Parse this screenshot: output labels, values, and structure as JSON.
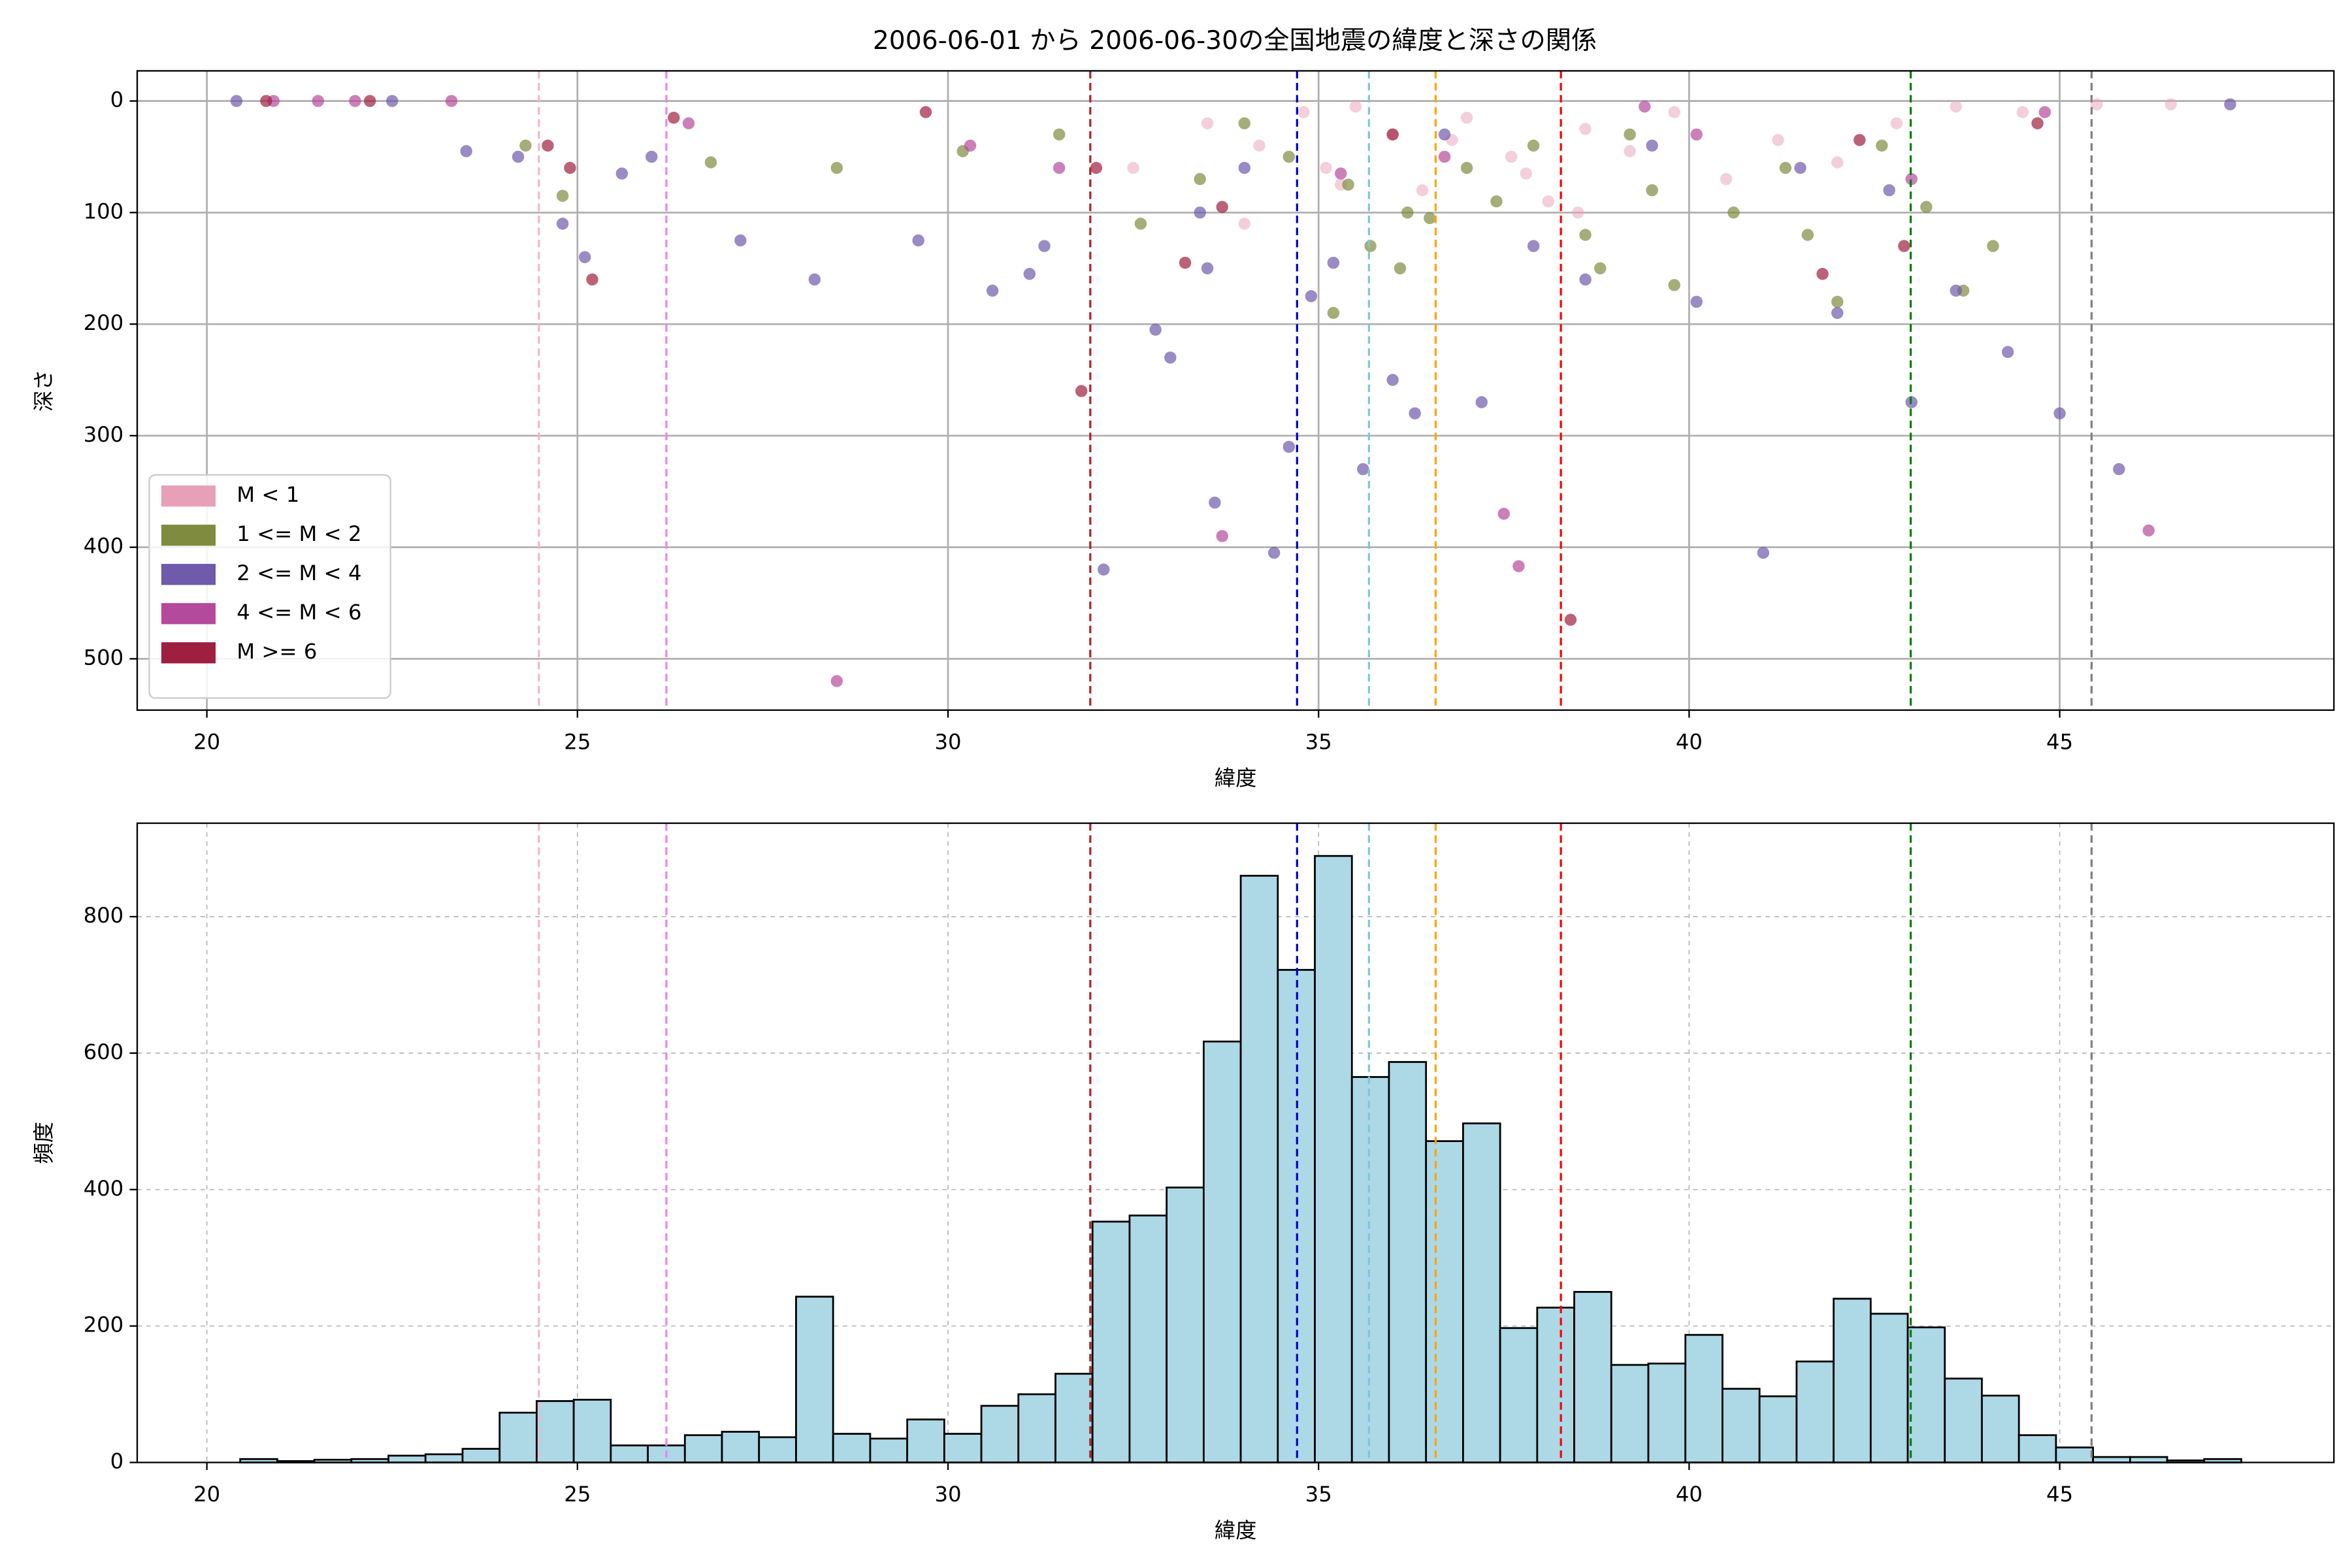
{
  "chart_data": [
    {
      "type": "scatter",
      "title": "2006-06-01 から 2006-06-30の全国地震の緯度と深さの関係",
      "x_label": "緯度",
      "y_label": "深さ",
      "xlim": [
        19.06,
        48.7
      ],
      "ylim": [
        546,
        -27
      ],
      "xticks": [
        20,
        25,
        30,
        35,
        40,
        45
      ],
      "yticks": [
        0,
        100,
        200,
        300,
        400,
        500
      ],
      "grid": "solid",
      "legend": "lower left",
      "vlines": [
        {
          "x": 24.48,
          "color": "#f4b6c9"
        },
        {
          "x": 26.2,
          "color": "#ee82ee"
        },
        {
          "x": 31.92,
          "color": "#b22222"
        },
        {
          "x": 34.71,
          "color": "#0000cd"
        },
        {
          "x": 35.68,
          "color": "#7ec8d8"
        },
        {
          "x": 36.58,
          "color": "#ffa500"
        },
        {
          "x": 38.27,
          "color": "#ff0000"
        },
        {
          "x": 42.99,
          "color": "#008000"
        },
        {
          "x": 45.43,
          "color": "#808080"
        }
      ],
      "series": [
        {
          "name": "M < 1",
          "color": "#e8a0b8",
          "x": [
            33.5,
            34.2,
            34.8,
            35.1,
            35.5,
            36.0,
            36.4,
            37.0,
            37.6,
            38.1,
            38.6,
            39.2,
            39.8,
            40.5,
            41.2,
            42.0,
            42.8,
            43.6,
            44.5,
            45.5,
            46.5,
            34.0,
            35.3,
            36.8,
            38.5,
            37.8,
            32.5
          ],
          "values": [
            20,
            40,
            10,
            60,
            5,
            30,
            80,
            15,
            50,
            90,
            25,
            45,
            10,
            70,
            35,
            55,
            20,
            5,
            10,
            3,
            3,
            110,
            75,
            35,
            100,
            65,
            60
          ]
        },
        {
          "name": "1 <= M < 2",
          "color": "#7f8c3f",
          "x": [
            24.3,
            24.8,
            26.8,
            28.5,
            30.2,
            31.5,
            32.6,
            33.4,
            34.0,
            34.6,
            35.2,
            35.7,
            36.1,
            36.5,
            37.0,
            37.4,
            37.9,
            38.6,
            39.2,
            39.8,
            40.6,
            41.3,
            42.0,
            42.6,
            43.2,
            43.7,
            44.1,
            35.4,
            36.2,
            38.8,
            39.5,
            41.6
          ],
          "values": [
            40,
            85,
            55,
            60,
            45,
            30,
            110,
            70,
            20,
            50,
            190,
            130,
            150,
            105,
            60,
            90,
            40,
            120,
            30,
            165,
            100,
            60,
            180,
            40,
            95,
            170,
            130,
            75,
            100,
            150,
            80,
            120
          ]
        },
        {
          "name": "2 <= M < 4",
          "color": "#6f5aab",
          "x": [
            20.4,
            22.5,
            23.5,
            24.2,
            24.8,
            25.1,
            25.6,
            26.0,
            27.2,
            28.2,
            29.6,
            30.6,
            31.1,
            31.3,
            32.8,
            33.0,
            33.4,
            33.6,
            34.0,
            34.4,
            34.6,
            34.9,
            35.2,
            35.6,
            36.0,
            36.3,
            36.7,
            37.2,
            37.9,
            38.6,
            39.5,
            40.1,
            41.0,
            41.5,
            42.0,
            42.7,
            43.0,
            43.6,
            44.3,
            45.0,
            45.8,
            47.3,
            33.5,
            32.1
          ],
          "values": [
            0,
            0,
            45,
            50,
            110,
            140,
            65,
            50,
            125,
            160,
            125,
            170,
            155,
            130,
            205,
            230,
            100,
            360,
            60,
            405,
            310,
            175,
            145,
            330,
            250,
            280,
            30,
            270,
            130,
            160,
            40,
            180,
            405,
            60,
            190,
            80,
            270,
            170,
            225,
            280,
            330,
            3,
            150,
            420
          ]
        },
        {
          "name": "4 <= M < 6",
          "color": "#b54a9c",
          "x": [
            20.9,
            21.5,
            22.0,
            23.3,
            26.5,
            28.5,
            30.3,
            31.5,
            33.7,
            35.3,
            36.7,
            37.5,
            37.7,
            39.4,
            40.1,
            43.0,
            44.8,
            46.2
          ],
          "values": [
            0,
            0,
            0,
            0,
            20,
            520,
            40,
            60,
            390,
            65,
            50,
            370,
            417,
            5,
            30,
            70,
            10,
            385
          ]
        },
        {
          "name": "M >= 6",
          "color": "#9e1f3f",
          "x": [
            20.8,
            22.2,
            24.6,
            24.9,
            25.2,
            26.3,
            29.7,
            31.8,
            32.0,
            33.2,
            33.7,
            36.0,
            38.4,
            41.8,
            42.3,
            42.9,
            44.7
          ],
          "values": [
            0,
            0,
            40,
            60,
            160,
            15,
            10,
            260,
            60,
            145,
            95,
            30,
            465,
            155,
            35,
            130,
            20
          ]
        }
      ]
    },
    {
      "type": "histogram",
      "x_label": "緯度",
      "y_label": "頻度",
      "xlim": [
        19.06,
        48.7
      ],
      "ylim": [
        0,
        937
      ],
      "xticks": [
        20,
        25,
        30,
        35,
        40,
        45
      ],
      "yticks": [
        0,
        200,
        400,
        600,
        800
      ],
      "grid": "dashed",
      "color": "#add8e6",
      "edgecolor": "#000000",
      "vlines": [
        {
          "x": 24.48,
          "color": "#f4b6c9"
        },
        {
          "x": 26.2,
          "color": "#ee82ee"
        },
        {
          "x": 31.92,
          "color": "#b22222"
        },
        {
          "x": 34.71,
          "color": "#0000cd"
        },
        {
          "x": 35.68,
          "color": "#7ec8d8"
        },
        {
          "x": 36.58,
          "color": "#ffa500"
        },
        {
          "x": 38.27,
          "color": "#ff0000"
        },
        {
          "x": 42.99,
          "color": "#008000"
        },
        {
          "x": 45.43,
          "color": "#808080"
        }
      ],
      "bins": [
        20.45,
        20.95,
        21.45,
        21.95,
        22.45,
        22.95,
        23.45,
        23.95,
        24.45,
        24.95,
        25.45,
        25.95,
        26.45,
        26.95,
        27.45,
        27.95,
        28.45,
        28.95,
        29.45,
        29.95,
        30.45,
        30.95,
        31.45,
        31.95,
        32.45,
        32.95,
        33.45,
        33.95,
        34.45,
        34.95,
        35.45,
        35.95,
        36.45,
        36.95,
        37.45,
        37.95,
        38.45,
        38.95,
        39.45,
        39.95,
        40.45,
        40.95,
        41.45,
        41.95,
        42.45,
        42.95,
        43.45,
        43.95,
        44.45,
        44.95,
        45.45,
        45.95,
        46.45,
        46.95,
        47.45
      ],
      "values": [
        5,
        2,
        4,
        5,
        10,
        12,
        20,
        73,
        90,
        92,
        25,
        25,
        40,
        45,
        37,
        243,
        42,
        35,
        63,
        42,
        83,
        100,
        130,
        353,
        362,
        403,
        617,
        860,
        722,
        889,
        565,
        587,
        471,
        497,
        197,
        227,
        250,
        143,
        145,
        187,
        108,
        97,
        148,
        240,
        218,
        198,
        123,
        98,
        40,
        22,
        8,
        8,
        3,
        5
      ]
    }
  ]
}
